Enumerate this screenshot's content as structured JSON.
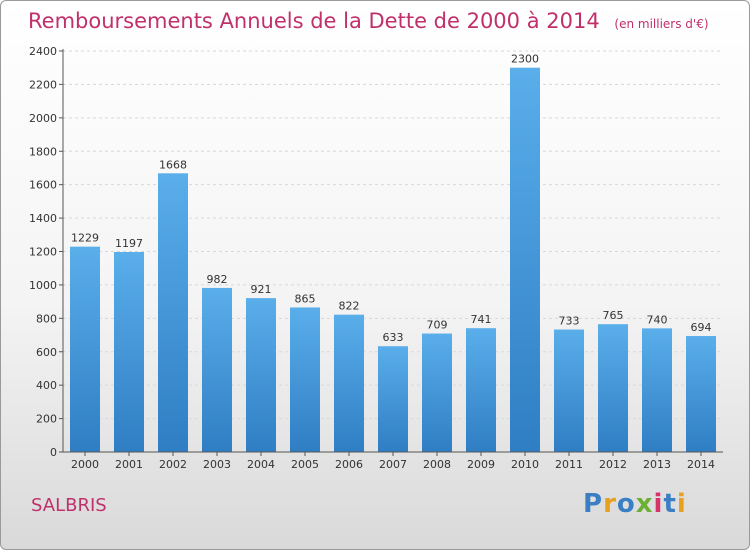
{
  "chart_data": {
    "type": "bar",
    "title": "Remboursements Annuels de la Dette de 2000 à 2014",
    "unit_note": "(en milliers d'€)",
    "categories": [
      "2000",
      "2001",
      "2002",
      "2003",
      "2004",
      "2005",
      "2006",
      "2007",
      "2008",
      "2009",
      "2010",
      "2011",
      "2012",
      "2013",
      "2014"
    ],
    "values": [
      1229,
      1197,
      1668,
      982,
      921,
      865,
      822,
      633,
      709,
      741,
      2300,
      733,
      765,
      740,
      694
    ],
    "ylim": [
      0,
      2400
    ],
    "yticks": [
      0,
      200,
      400,
      600,
      800,
      1000,
      1200,
      1400,
      1600,
      1800,
      2000,
      2200,
      2400
    ],
    "grid": true,
    "bar_color": "#3d8fd4"
  },
  "footer": {
    "city": "SALBRIS"
  },
  "logo": {
    "text": "Proxiti",
    "letters": [
      "P",
      "r",
      "o",
      "x",
      "i",
      "t",
      "i"
    ]
  }
}
